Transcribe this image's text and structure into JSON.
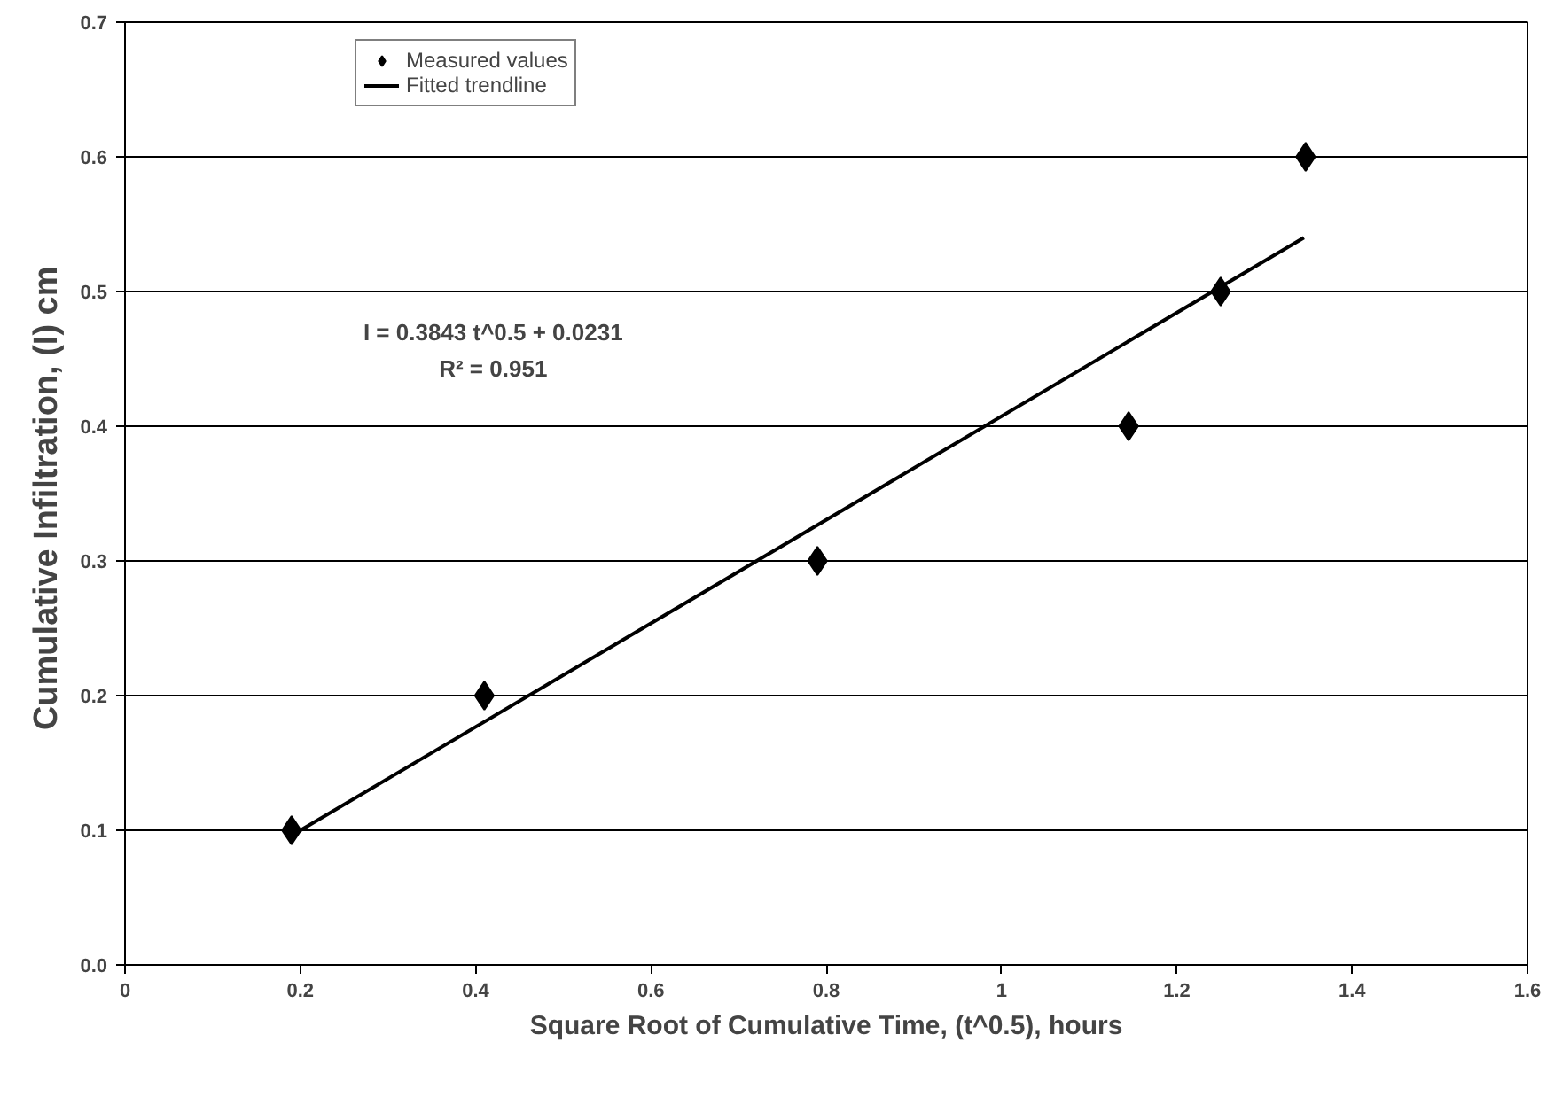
{
  "chart_data": {
    "type": "scatter",
    "xlabel": "Square Root of Cumulative Time, (t^0.5), hours",
    "ylabel": "Cumulative Infiltration,  (I) cm",
    "series": [
      {
        "name": "Measured values",
        "color": "#000000",
        "marker": "diamond",
        "x": [
          0.19,
          0.41,
          0.79,
          1.145,
          1.25,
          1.347
        ],
        "values": [
          0.1,
          0.2,
          0.3,
          0.4,
          0.5,
          0.6
        ]
      },
      {
        "name": "Fitted trendline",
        "type": "line",
        "color": "#000000",
        "marker": "none",
        "line_style": "solid",
        "x": [
          0.19,
          1.345
        ],
        "values": [
          0.096,
          0.54
        ]
      }
    ],
    "annotations": [
      "I = 0.3843 t^0.5 + 0.0231",
      "R² = 0.951"
    ],
    "xlim": [
      0,
      1.6
    ],
    "xticks": [
      {
        "value": 0,
        "label": "0"
      },
      0.2,
      0.4,
      0.6,
      0.8,
      {
        "value": 1,
        "label": "1"
      },
      1.2,
      1.4,
      1.6
    ],
    "ylim": [
      0,
      0.7
    ],
    "yticks": [
      {
        "value": 0,
        "label": "0.0"
      },
      0.1,
      0.2,
      0.3,
      0.4,
      0.5,
      0.6,
      0.7
    ],
    "grid": "y",
    "legend": "top left"
  }
}
